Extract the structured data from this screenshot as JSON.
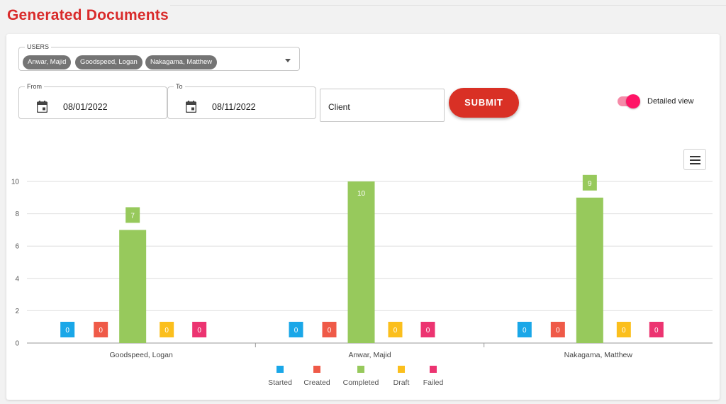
{
  "page": {
    "title": "Generated Documents"
  },
  "filters": {
    "users_label": "USERS",
    "users": [
      "Anwar, Majid",
      "Goodspeed, Logan",
      "Nakagama, Matthew"
    ],
    "from_label": "From",
    "from_value": "08/01/2022",
    "to_label": "To",
    "to_value": "08/11/2022",
    "client_placeholder": "Client",
    "submit_label": "SUBMIT",
    "detailed_view_label": "Detailed view",
    "detailed_view_on": true
  },
  "colors": {
    "brand": "#d92b2b",
    "Started": "#1aa7e8",
    "Created": "#ef5a48",
    "Completed": "#97c95c",
    "Draft": "#fbbf1d",
    "Failed": "#ec3471"
  },
  "chart_data": {
    "type": "bar",
    "categories": [
      "Goodspeed, Logan",
      "Anwar, Majid",
      "Nakagama, Matthew"
    ],
    "series": [
      {
        "name": "Started",
        "values": [
          0,
          0,
          0
        ]
      },
      {
        "name": "Created",
        "values": [
          0,
          0,
          0
        ]
      },
      {
        "name": "Completed",
        "values": [
          7,
          10,
          9
        ]
      },
      {
        "name": "Draft",
        "values": [
          0,
          0,
          0
        ]
      },
      {
        "name": "Failed",
        "values": [
          0,
          0,
          0
        ]
      }
    ],
    "ylim": [
      0,
      10
    ],
    "yticks": [
      0,
      2,
      4,
      6,
      8,
      10
    ],
    "grid": true,
    "legend": "bottom"
  }
}
